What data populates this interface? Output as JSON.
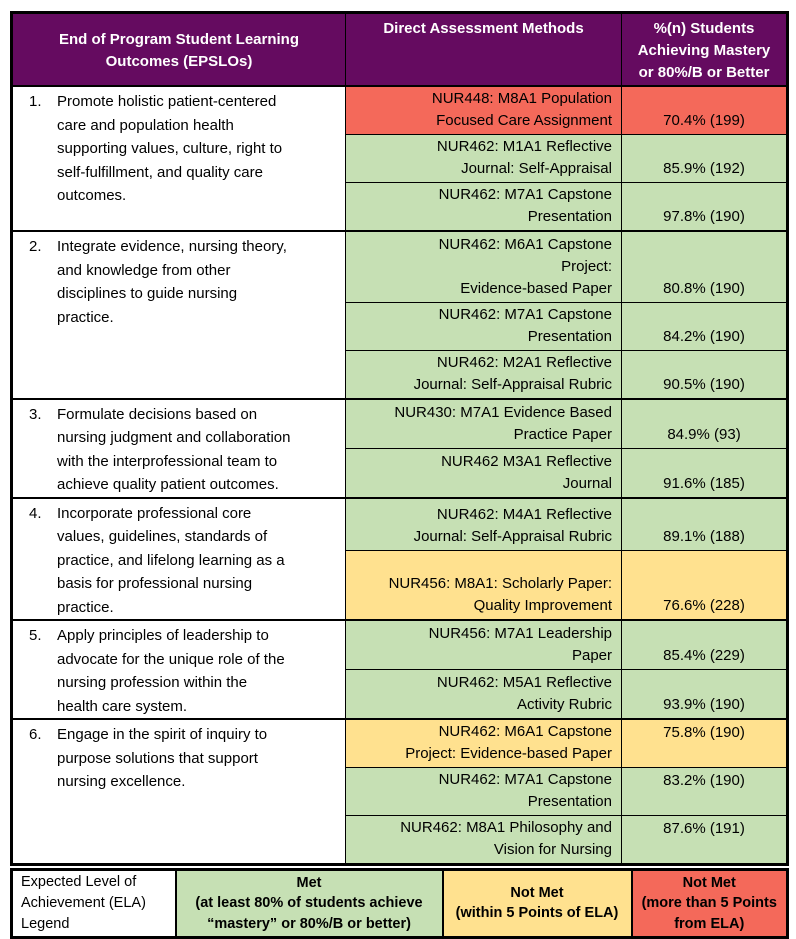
{
  "colors": {
    "header_bg": "#650B60",
    "header_text": "#FFFFFF",
    "met": "#C6E0B4",
    "not_met_close": "#FFE18F",
    "not_met_far": "#F4695A"
  },
  "header": {
    "col_outcomes": "End of Program Student Learning\nOutcomes (EPSLOs)",
    "col_methods": "Direct Assessment Methods",
    "col_mastery": "%(n) Students\nAchieving Mastery\nor 80%/B or Better"
  },
  "outcomes": [
    {
      "number": "1.",
      "text": "Promote holistic patient-centered\ncare and population health\nsupporting values, culture, right to\nself-fulfillment, and quality care\noutcomes.",
      "assessments": [
        {
          "method": "NUR448: M8A1 Population\nFocused Care Assignment",
          "value": "70.4% (199)",
          "status": "not_met_far"
        },
        {
          "method": "NUR462: M1A1 Reflective\nJournal: Self-Appraisal",
          "value": "85.9% (192)",
          "status": "met"
        },
        {
          "method": "NUR462: M7A1 Capstone\nPresentation",
          "value": "97.8% (190)",
          "status": "met"
        }
      ]
    },
    {
      "number": "2.",
      "text": "Integrate evidence, nursing theory,\nand knowledge from other\ndisciplines to guide nursing\npractice.",
      "assessments": [
        {
          "method": "NUR462: M6A1 Capstone\nProject:\nEvidence-based Paper",
          "value": "80.8% (190)",
          "status": "met"
        },
        {
          "method": "NUR462: M7A1 Capstone\nPresentation",
          "value": "84.2% (190)",
          "status": "met"
        },
        {
          "method": "NUR462: M2A1 Reflective\nJournal: Self-Appraisal Rubric",
          "value": "90.5% (190)",
          "status": "met"
        }
      ]
    },
    {
      "number": "3.",
      "text": "Formulate decisions based on\nnursing judgment and collaboration\nwith the interprofessional team to\nachieve quality patient outcomes.",
      "assessments": [
        {
          "method": "NUR430: M7A1 Evidence Based\nPractice Paper",
          "value": "84.9% (93)",
          "status": "met"
        },
        {
          "method": "NUR462 M3A1 Reflective\nJournal",
          "value": "91.6% (185)",
          "status": "met"
        }
      ]
    },
    {
      "number": "4.",
      "text": "Incorporate professional core\nvalues, guidelines, standards of\npractice, and lifelong learning as a\nbasis for professional nursing\npractice.",
      "assessments": [
        {
          "method": "NUR462: M4A1 Reflective\nJournal: Self-Appraisal Rubric",
          "value": "89.1% (188)",
          "status": "met"
        },
        {
          "method": "NUR456: M8A1: Scholarly Paper:\nQuality Improvement",
          "value": "76.6% (228)",
          "status": "not_met_close"
        }
      ]
    },
    {
      "number": "5.",
      "text": "Apply principles of leadership to\nadvocate for the unique role of the\nnursing profession within the\nhealth care system.",
      "assessments": [
        {
          "method": "NUR456: M7A1 Leadership\nPaper",
          "value": "85.4% (229)",
          "status": "met"
        },
        {
          "method": "NUR462: M5A1 Reflective\nActivity Rubric",
          "value": "93.9% (190)",
          "status": "met"
        }
      ]
    },
    {
      "number": "6.",
      "text": "Engage in the spirit of inquiry to\npurpose solutions that support\nnursing excellence.",
      "assessments": [
        {
          "method": "NUR462: M6A1 Capstone\nProject: Evidence-based Paper",
          "value": "75.8% (190)",
          "status": "not_met_close"
        },
        {
          "method": "NUR462: M7A1 Capstone\nPresentation",
          "value": "83.2% (190)",
          "status": "met"
        },
        {
          "method": "NUR462: M8A1 Philosophy and\nVision for Nursing",
          "value": "87.6% (191)",
          "status": "met"
        }
      ]
    }
  ],
  "legend": {
    "label": "Expected Level of\nAchievement (ELA)\nLegend",
    "items": [
      {
        "title": "Met",
        "detail": "(at least 80% of students achieve\n“mastery” or 80%/B or better)",
        "status": "met"
      },
      {
        "title": "Not Met",
        "detail": "(within 5 Points of ELA)",
        "status": "not_met_close"
      },
      {
        "title": "Not Met",
        "detail": "(more than 5 Points\nfrom ELA)",
        "status": "not_met_far"
      }
    ]
  }
}
